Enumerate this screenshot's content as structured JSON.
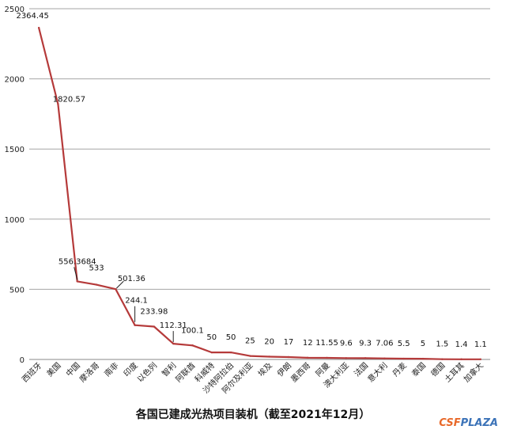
{
  "chart_data": {
    "type": "line",
    "title": "各国已建成光热项目装机（截至2021年12月）",
    "xlabel": "",
    "ylabel": "",
    "ylim": [
      0,
      2500
    ],
    "yticks": [
      "0",
      "500",
      "1000",
      "1500",
      "2000",
      "2500"
    ],
    "grid": true,
    "line_color": "#b53a3a",
    "categories": [
      "西班牙",
      "美国",
      "中国",
      "摩洛哥",
      "南非",
      "印度",
      "以色列",
      "智利",
      "阿联酋",
      "科威特",
      "沙特阿拉伯",
      "阿尔及利亚",
      "埃及",
      "伊朗",
      "墨西哥",
      "阿曼",
      "澳大利亚",
      "法国",
      "意大利",
      "丹麦",
      "泰国",
      "德国",
      "土耳其",
      "加拿大"
    ],
    "values": [
      2364.45,
      1820.57,
      556.3684,
      533,
      501.36,
      244.1,
      233.98,
      112.31,
      100.1,
      50,
      50,
      25,
      20,
      17,
      12,
      11.55,
      9.6,
      9.3,
      7.06,
      5.5,
      5,
      1.5,
      1.4,
      1.1
    ],
    "value_labels": [
      "2364.45",
      "1820.57",
      "556.3684",
      "533",
      "501.36",
      "244.1",
      "233.98",
      "112.31",
      "100.1",
      "50",
      "50",
      "25",
      "20",
      "17",
      "12",
      "11.55",
      "9.6",
      "9.3",
      "7.06",
      "5.5",
      "5",
      "1.5",
      "1.4",
      "1.1"
    ]
  },
  "watermark": {
    "part1": "CSF",
    "part2": "PLAZA"
  }
}
